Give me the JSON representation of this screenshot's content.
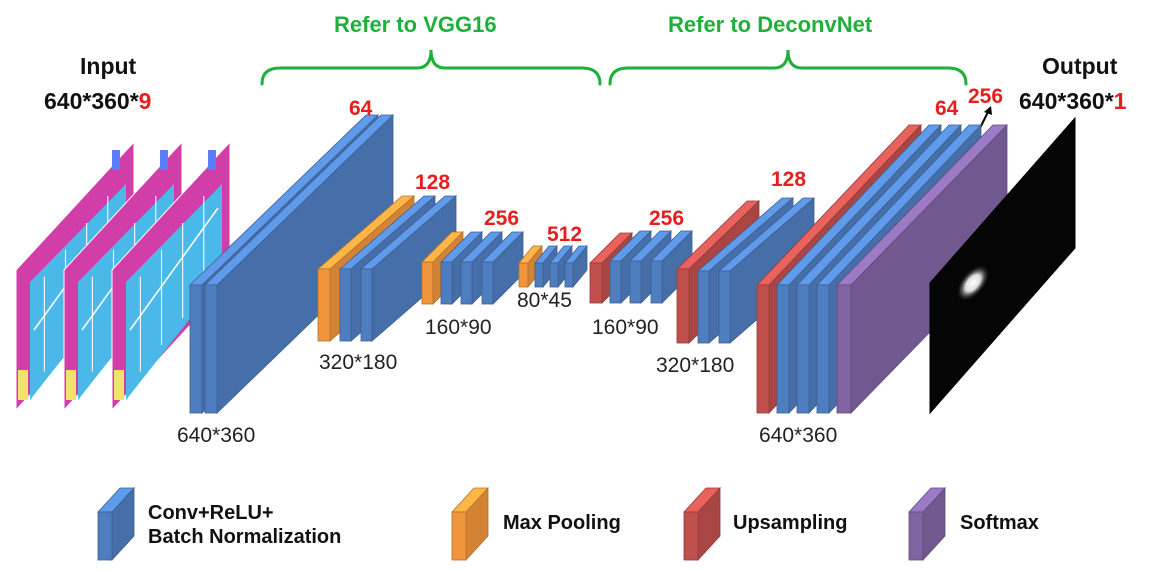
{
  "brackets": {
    "vgg": "Refer to VGG16",
    "deconv": "Refer to DeconvNet"
  },
  "input": {
    "title": "Input",
    "dims_prefix": "640*360*",
    "channels": "9"
  },
  "output": {
    "title": "Output",
    "dims_prefix": "640*360*",
    "channels": "1"
  },
  "channel_labels": {
    "enc1": "64",
    "enc2": "128",
    "enc3": "256",
    "enc4": "512",
    "dec1": "256",
    "dec2": "128",
    "dec3a": "64",
    "dec3b": "256"
  },
  "size_labels": {
    "enc1": "640*360",
    "enc2": "320*180",
    "enc3": "160*90",
    "enc4": "80*45",
    "dec1": "160*90",
    "dec2": "320*180",
    "dec3": "640*360"
  },
  "legend": {
    "conv_line1": "Conv+ReLU+",
    "conv_line2": "Batch Normalization",
    "pool": "Max Pooling",
    "upsample": "Upsampling",
    "softmax": "Softmax"
  },
  "colors": {
    "conv": "#4f7ec0",
    "pool": "#f0953b",
    "upsample": "#c0504d",
    "softmax": "#8064a2",
    "bracket": "#1eb03b",
    "channel_text": "#e61e1e"
  }
}
